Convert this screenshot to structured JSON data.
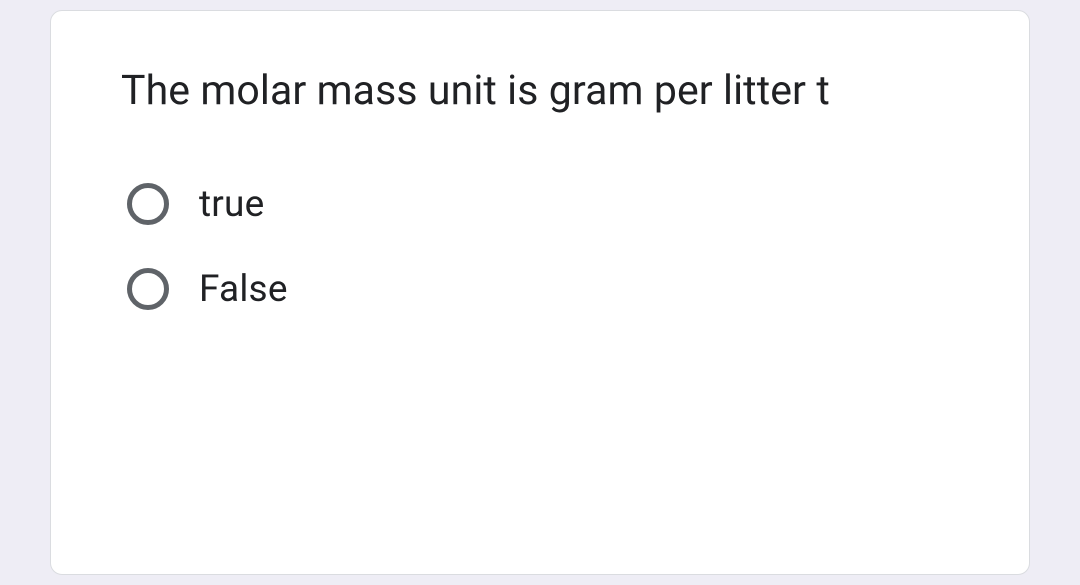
{
  "question": {
    "text": "The molar mass unit is gram per litter t",
    "options": [
      {
        "label": "true",
        "selected": false
      },
      {
        "label": "False",
        "selected": false
      }
    ]
  },
  "styling": {
    "background_color": "#eeedf5",
    "card_background": "#ffffff",
    "card_border_color": "#dadce0",
    "card_border_radius": 12,
    "text_color": "#202124",
    "radio_border_color": "#5f6368",
    "question_fontsize": 41,
    "option_fontsize": 37
  }
}
